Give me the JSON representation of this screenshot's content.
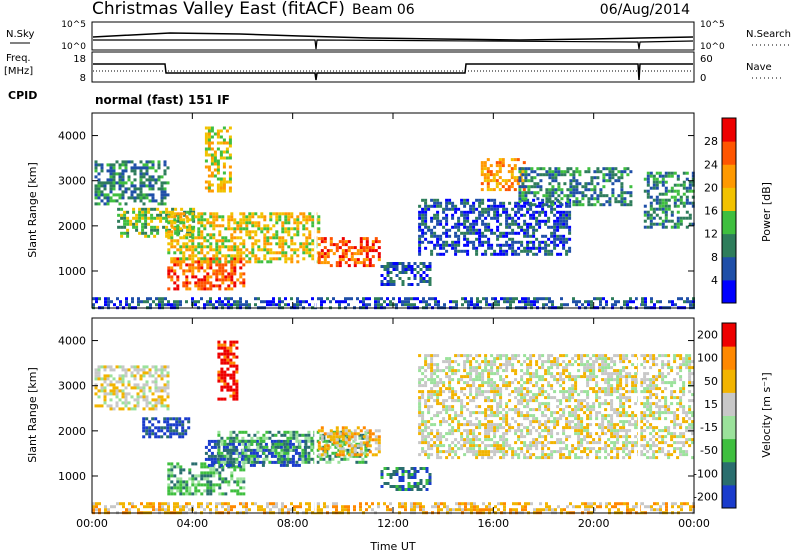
{
  "header": {
    "title": "Christmas Valley East (fitACF)",
    "beam": "Beam 06",
    "date": "06/Aug/2014"
  },
  "top_panels": {
    "nsky_label": "N.Sky",
    "nsearch_label": "N.Search",
    "noise_ticks": [
      "10^5",
      "10^0"
    ],
    "freq_label": "Freq.",
    "freq_unit": "[MHz]",
    "freq_ticks": [
      "18",
      "8"
    ],
    "nave_label": "Nave",
    "nave_ticks": [
      "60",
      "0"
    ],
    "cpid_label": "CPID",
    "cpid_value": "normal (fast) 151 IF"
  },
  "chart_data": [
    {
      "type": "heatmap",
      "name": "power",
      "ylabel": "Slant Range [km]",
      "yticks": [
        "1000",
        "2000",
        "3000",
        "4000"
      ],
      "ylim": [
        180,
        4500
      ],
      "xlim": [
        0,
        24
      ],
      "colorbar_label": "Power [dB]",
      "colorbar_ticks": [
        "4",
        "8",
        "12",
        "16",
        "20",
        "24",
        "28"
      ],
      "colors": [
        "#0000ff",
        "#1f4fa8",
        "#2e7d5b",
        "#3fbf3f",
        "#f2c200",
        "#ff9900",
        "#ff5500",
        "#ee0000"
      ],
      "regions": [
        {
          "t0": 0.1,
          "t1": 3.0,
          "r0": 2500,
          "r1": 3450,
          "level": 2
        },
        {
          "t0": 1.0,
          "t1": 4.0,
          "r0": 1800,
          "r1": 2400,
          "level": 3
        },
        {
          "t0": 3.0,
          "t1": 6.0,
          "r0": 600,
          "r1": 1300,
          "level": 6
        },
        {
          "t0": 3.0,
          "t1": 9.0,
          "r0": 1200,
          "r1": 2300,
          "level": 4
        },
        {
          "t0": 9.0,
          "t1": 11.5,
          "r0": 1100,
          "r1": 1750,
          "level": 6
        },
        {
          "t0": 4.5,
          "t1": 5.5,
          "r0": 2800,
          "r1": 4200,
          "level": 4
        },
        {
          "t0": 11.5,
          "t1": 13.5,
          "r0": 700,
          "r1": 1200,
          "level": 1
        },
        {
          "t0": 13.0,
          "t1": 19.0,
          "r0": 1400,
          "r1": 2600,
          "level": 1
        },
        {
          "t0": 15.5,
          "t1": 17.2,
          "r0": 2800,
          "r1": 3500,
          "level": 5
        },
        {
          "t0": 17.0,
          "t1": 21.5,
          "r0": 2500,
          "r1": 3300,
          "level": 2
        },
        {
          "t0": 22.0,
          "t1": 24.0,
          "r0": 2000,
          "r1": 3200,
          "level": 2
        },
        {
          "t0": 0.0,
          "t1": 24.0,
          "r0": 180,
          "r1": 420,
          "level": 1
        }
      ],
      "gaps": [
        8.9,
        21.8
      ]
    },
    {
      "type": "heatmap",
      "name": "velocity",
      "ylabel": "Slant Range [km]",
      "yticks": [
        "1000",
        "2000",
        "3000",
        "4000"
      ],
      "ylim": [
        180,
        4500
      ],
      "xlim": [
        0,
        24
      ],
      "colorbar_label": "Velocity [m s⁻¹]",
      "colorbar_ticks": [
        "200",
        "100",
        "50",
        "15",
        "-15",
        "-50",
        "-100",
        "-200"
      ],
      "colors": [
        "#1a3ccc",
        "#2a6e6e",
        "#3fbf3f",
        "#9be29b",
        "#c8c8c8",
        "#f2b400",
        "#ff8800",
        "#ee0000"
      ],
      "regions": [
        {
          "t0": 0.1,
          "t1": 3.0,
          "r0": 2500,
          "r1": 3450,
          "level": 4
        },
        {
          "t0": 2.0,
          "t1": 3.8,
          "r0": 1900,
          "r1": 2300,
          "level": 0
        },
        {
          "t0": 3.0,
          "t1": 6.0,
          "r0": 600,
          "r1": 1300,
          "level": 2
        },
        {
          "t0": 4.5,
          "t1": 8.5,
          "r0": 1250,
          "r1": 1800,
          "level": 0
        },
        {
          "t0": 5.0,
          "t1": 11.0,
          "r0": 1300,
          "r1": 2000,
          "level": 2
        },
        {
          "t0": 9.0,
          "t1": 11.5,
          "r0": 1500,
          "r1": 2100,
          "level": 5
        },
        {
          "t0": 5.0,
          "t1": 5.8,
          "r0": 2700,
          "r1": 4000,
          "level": 7
        },
        {
          "t0": 11.5,
          "t1": 13.5,
          "r0": 700,
          "r1": 1200,
          "level": 1
        },
        {
          "t0": 13.0,
          "t1": 24.0,
          "r0": 1400,
          "r1": 3700,
          "level": 4
        },
        {
          "t0": 0.0,
          "t1": 24.0,
          "r0": 180,
          "r1": 420,
          "level": 5
        }
      ],
      "gaps": [
        8.9,
        21.8
      ]
    }
  ],
  "x_axis": {
    "ticks": [
      "00:00",
      "04:00",
      "08:00",
      "12:00",
      "16:00",
      "20:00",
      "00:00"
    ],
    "label": "Time UT"
  }
}
